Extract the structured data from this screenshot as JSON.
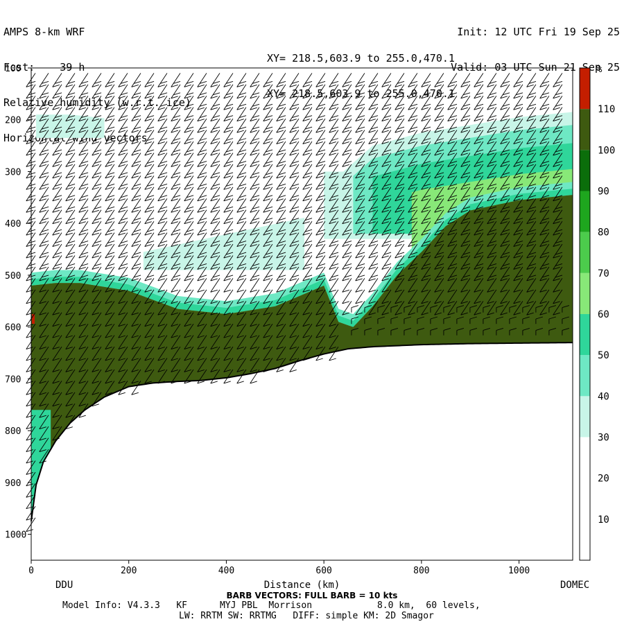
{
  "header": {
    "left": [
      "AMPS 8-km WRF",
      "Fcst:    39 h",
      "Relative humidity (w.r.t. ice)",
      "Horizontal wind vectors"
    ],
    "mid": [
      "XY= 218.5,603.9 to 255.0,470.1",
      "XY= 218.5,603.9 to 255.0,470.1"
    ],
    "right": [
      "Init: 12 UTC Fri 19 Sep 25",
      "Valid: 03 UTC Sun 21 Sep 25"
    ]
  },
  "chart_data": {
    "type": "heatmap",
    "title": "Relative humidity (w.r.t. ice)",
    "xlabel": "Distance (km)",
    "ylabel": "",
    "xlim": [
      0,
      1110
    ],
    "ylim": [
      1050,
      100
    ],
    "x_ticks": [
      0,
      200,
      400,
      600,
      800,
      1000
    ],
    "y_ticks": [
      100,
      200,
      300,
      400,
      500,
      600,
      700,
      800,
      900,
      1000
    ],
    "endpoint_labels": {
      "left": "DDU",
      "right": "DOMEC"
    },
    "colorbar": {
      "unit": "%",
      "ticks": [
        10,
        20,
        30,
        40,
        50,
        60,
        70,
        80,
        90,
        100,
        110
      ],
      "colors": [
        "#ffffff",
        "#ffffff",
        "#ffffff",
        "#c8f5e8",
        "#6ee8c4",
        "#2fd69a",
        "#88e878",
        "#4ccc4c",
        "#1ea61e",
        "#0b6e0b",
        "#3e5a10",
        "#c41e00"
      ]
    },
    "terrain_surface": {
      "x": [
        0,
        10,
        25,
        50,
        80,
        110,
        150,
        200,
        250,
        300,
        350,
        400,
        450,
        500,
        550,
        600,
        650,
        700,
        800,
        900,
        1000,
        1110
      ],
      "pressure": [
        975,
        905,
        860,
        820,
        785,
        760,
        735,
        715,
        708,
        705,
        703,
        698,
        690,
        680,
        665,
        652,
        642,
        638,
        634,
        632,
        631,
        630
      ]
    },
    "moist_layer_top": {
      "x": [
        0,
        50,
        100,
        200,
        300,
        400,
        500,
        550,
        600,
        630,
        660,
        700,
        750,
        800,
        850,
        900,
        1000,
        1110
      ],
      "pressure": [
        520,
        515,
        515,
        530,
        565,
        575,
        560,
        540,
        520,
        590,
        600,
        560,
        500,
        455,
        405,
        375,
        355,
        345
      ]
    },
    "upper_moist_layer_top": {
      "x": [
        640,
        700,
        800,
        900,
        1000,
        1110
      ],
      "pressure": [
        300,
        250,
        225,
        210,
        195,
        185
      ]
    },
    "wind_barbs": "full barb = 10 kts"
  },
  "footer": {
    "barb_note": "BARB VECTORS:  FULL BARB = 10 kts",
    "model_info_1": "Model Info: V4.3.3   KF      MYJ PBL  Morrison            8.0 km,  60 levels,",
    "model_info_2": "LW: RRTM SW: RRTMG   DIFF: simple KM: 2D Smagor"
  }
}
